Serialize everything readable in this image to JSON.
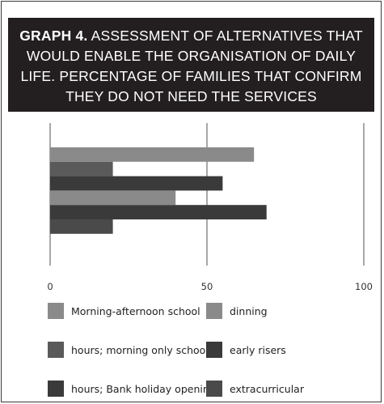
{
  "title": {
    "bold": "GRAPH 4.",
    "text": "ASSESSMENT OF ALTERNATIVES THAT WOULD ENABLE THE ORGANISATION OF DAILY LIFE. PERCENTAGE OF FAMILIES THAT CONFIRM THEY DO NOT NEED THE SERVICES"
  },
  "chart_data": {
    "type": "bar",
    "orientation": "horizontal",
    "series": [
      {
        "name": "Morning-afternoon school",
        "value": 65,
        "color": "#8a8a8a"
      },
      {
        "name": "hours; morning only school",
        "value": 20,
        "color": "#5a5a5a"
      },
      {
        "name": "hours; Bank holiday opening",
        "value": 55,
        "color": "#3a3a3a"
      },
      {
        "name": "dinning",
        "value": 40,
        "color": "#8a8a8a"
      },
      {
        "name": "early risers",
        "value": 69,
        "color": "#3a3a3a"
      },
      {
        "name": "extracurricular",
        "value": 20,
        "color": "#4a4a4a"
      }
    ],
    "xlim": [
      0,
      100
    ],
    "xticks": [
      "0",
      "50",
      "100"
    ],
    "gridlines": "vertical",
    "legend": "bottom"
  }
}
